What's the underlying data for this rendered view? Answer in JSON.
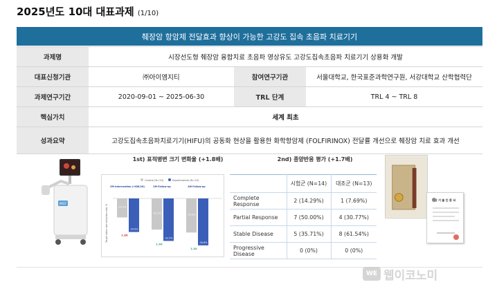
{
  "page_title": "2025년도 10대 대표과제",
  "page_title_sub": "(1/10)",
  "banner": "췌장암 항암제 전달효과 향상이 가능한 고강도 집속 초음파 치료기기",
  "info": {
    "r1_label": "과제명",
    "r1_value": "시장선도형 췌장암 융합치료 초음파 영상유도 고강도집속초음파 치료기기 상용화 개발",
    "r2_label": "대표신청기관",
    "r2_value": "㈜아이엠지티",
    "r2_label2": "참여연구기관",
    "r2_value2": "서울대학교, 한국표준과학연구원, 서강대학교 산학협력단",
    "r3_label": "과제연구기간",
    "r3_value": "2020-09-01 ~ 2025-06-30",
    "r3_label2": "TRL 단계",
    "r3_value2": "TRL 4 ~ TRL 8",
    "r4_label": "핵심가치",
    "r4_value": "세계 최초",
    "r5_label": "성과요약",
    "r5_value": "고강도집속초음파치료기기(HIFU)의 공동화 현상을 활용한 화학항암제 (FOLFIRINOX) 전달률 개선으로 췌장암 치료 효과 개선"
  },
  "chart1": {
    "title": "1st) 표적병변 크기 변화율 (+1.8배)",
    "legend_control": "Control (N=13)",
    "legend_exp": "Experimental (N=14)",
    "ylabel": "Target lesion size reduction rate, %",
    "group_labels": [
      "2M Intervention (+8W/16)",
      "2M Follow-up",
      "4M Follow-up"
    ],
    "mult_labels": [
      "1.8X",
      "1.4X",
      "1.4X"
    ]
  },
  "chart_data": {
    "type": "bar",
    "title": "1st) 표적병변 크기 변화율 (+1.8배)",
    "categories": [
      "2M Intervention (+8W/16)",
      "2M Follow-up",
      "4M Follow-up"
    ],
    "series": [
      {
        "name": "Control (N=13)",
        "values": [
          -14.1,
          -23.1,
          -25.3
        ]
      },
      {
        "name": "Experimental (N=14)",
        "values": [
          -24.9,
          -31.5,
          -34.8
        ]
      }
    ],
    "xlabel": "",
    "ylabel": "Target lesion size reduction rate, %",
    "ylim": [
      -40,
      0
    ],
    "colors": {
      "control": "#c8c8c8",
      "experimental": "#3b5fb8"
    }
  },
  "response": {
    "title": "2nd) 종양반응 평가 (+1.7배)",
    "col1": "시험군 (N=14)",
    "col2": "대조군 (N=13)",
    "rows": [
      {
        "label": "Complete Response",
        "a": "2 (14.29%)",
        "b": "1 (7.69%)"
      },
      {
        "label": "Partial Response",
        "a": "7 (50.00%)",
        "b": "4 (30.77%)"
      },
      {
        "label": "Stable Disease",
        "a": "5 (35.71%)",
        "b": "8 (61.54%)"
      },
      {
        "label": "Progressive Disease",
        "a": "0 (0%)",
        "b": "0 (0%)"
      }
    ]
  },
  "certificate_title": "상 기 술 인 증 서",
  "device_brand": "IMGT",
  "watermark": {
    "logo": "WE",
    "text": "웹이코노미"
  }
}
